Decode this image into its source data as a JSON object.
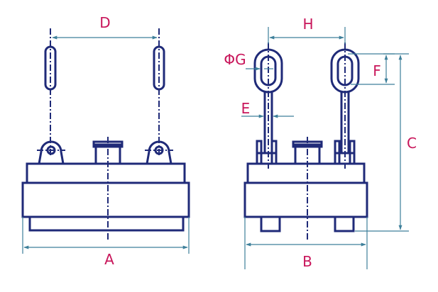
{
  "colors": {
    "body": "#1f2a78",
    "dimension": "#3d7f9a",
    "label": "#c8155a"
  },
  "labels": {
    "A": "A",
    "B": "B",
    "C": "C",
    "D": "D",
    "E": "E",
    "F": "F",
    "G": "ΦG",
    "H": "H"
  }
}
